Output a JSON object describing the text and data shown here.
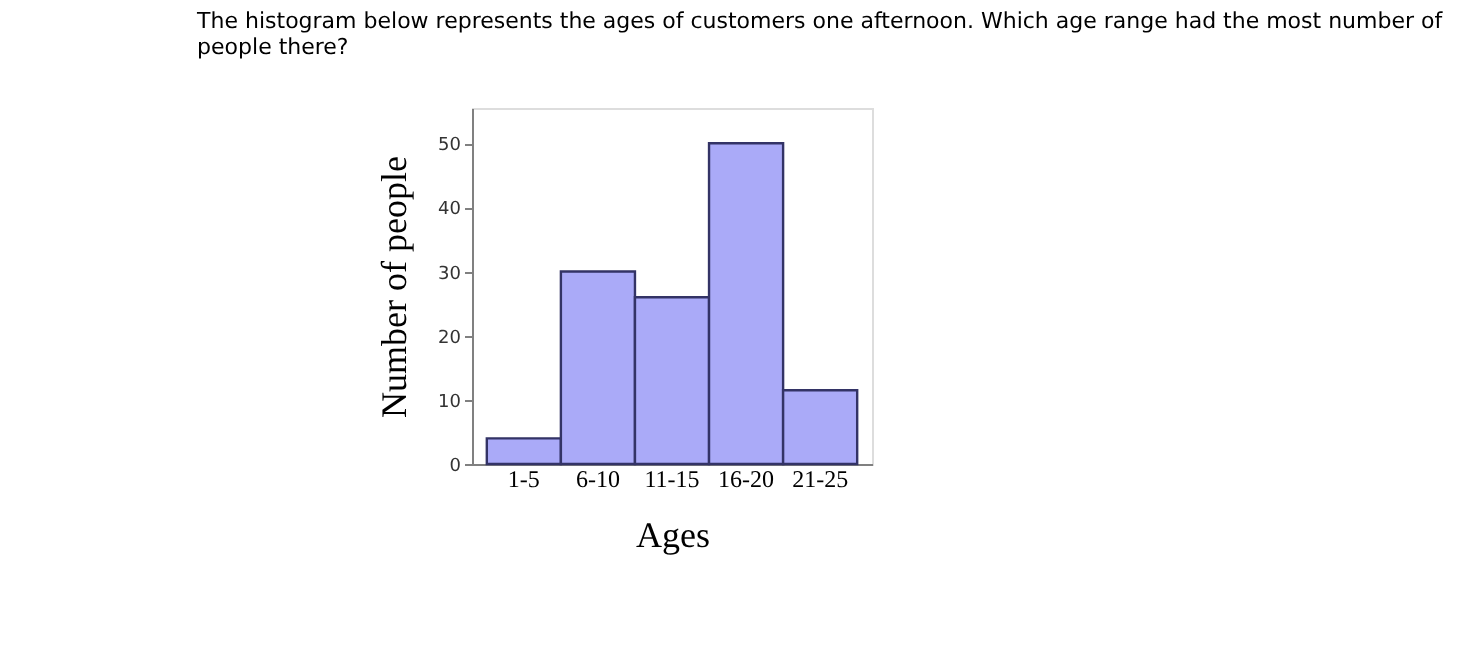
{
  "chart_data": {
    "type": "bar",
    "title": "The histogram below represents the ages of customers one afternoon.  Which age range had the most number of people there?",
    "xlabel": "Ages",
    "ylabel": "Number of people",
    "categories": [
      "1-5",
      "6-10",
      "11-15",
      "16-20",
      "21-25"
    ],
    "values": [
      4,
      30,
      26,
      50,
      11.5
    ],
    "color": "#aaaaf8",
    "ylim": [
      0,
      55.5
    ],
    "yticks": [
      0,
      10,
      20,
      30,
      40,
      50
    ],
    "grid": false
  }
}
